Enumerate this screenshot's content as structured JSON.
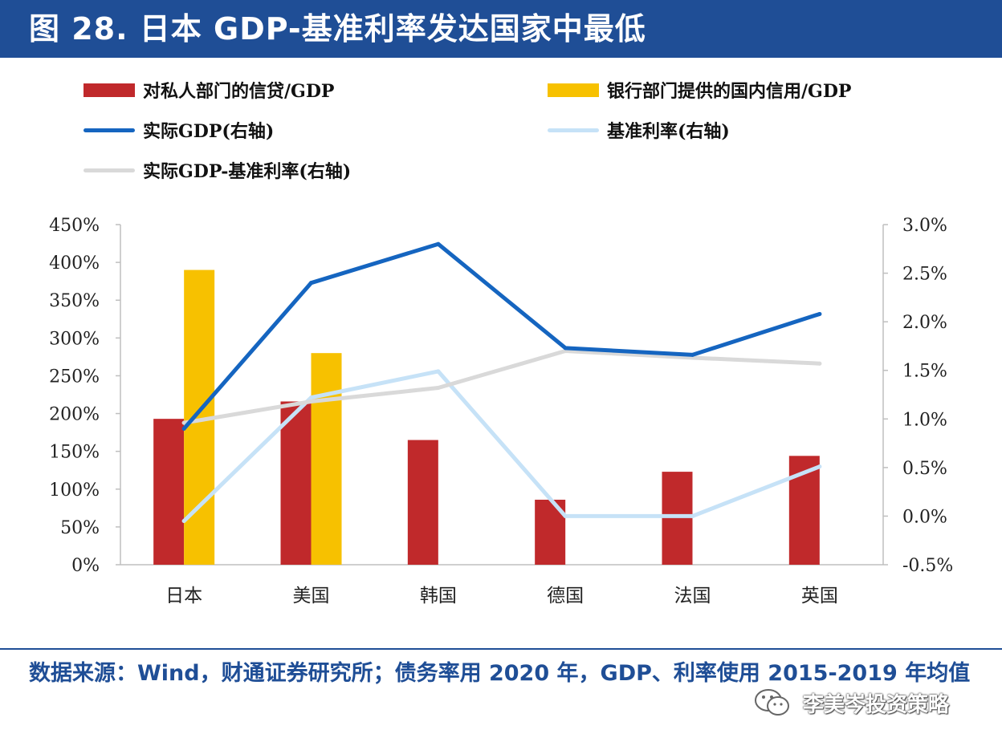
{
  "title": "图 28. 日本 GDP-基准利率发达国家中最低",
  "legend": {
    "private_credit": "对私人部门的信贷/GDP",
    "bank_credit": "银行部门提供的国内信用/GDP",
    "real_gdp": "实际GDP(右轴)",
    "policy_rate": "基准利率(右轴)",
    "gdp_minus_rate": "实际GDP-基准利率(右轴)"
  },
  "colors": {
    "title_bg": "#1f4e96",
    "private_credit": "#c0292b",
    "bank_credit": "#f7c100",
    "real_gdp": "#1565c0",
    "policy_rate": "#c6e2f7",
    "gdp_minus_rate": "#d9d9d9",
    "source_text": "#1f4e96"
  },
  "chart_data": {
    "type": "bar",
    "categories": [
      "日本",
      "美国",
      "韩国",
      "德国",
      "法国",
      "英国"
    ],
    "y_left": {
      "ticks": [
        "450%",
        "400%",
        "350%",
        "300%",
        "250%",
        "200%",
        "150%",
        "100%",
        "50%",
        "0%"
      ],
      "range": [
        0,
        450
      ]
    },
    "y_right": {
      "ticks": [
        "3.0%",
        "2.5%",
        "2.0%",
        "1.5%",
        "1.0%",
        "0.5%",
        "0.0%",
        "-0.5%"
      ],
      "range": [
        -0.5,
        3.0
      ]
    },
    "series": [
      {
        "key": "private_credit",
        "name": "对私人部门的信贷/GDP",
        "type": "bar",
        "axis": "left",
        "values": [
          193,
          216,
          165,
          86,
          123,
          144
        ]
      },
      {
        "key": "bank_credit",
        "name": "银行部门提供的国内信用/GDP",
        "type": "bar",
        "axis": "left",
        "values": [
          390,
          280,
          null,
          null,
          null,
          null
        ]
      },
      {
        "key": "real_gdp",
        "name": "实际GDP(右轴)",
        "type": "line",
        "axis": "right",
        "values": [
          0.9,
          2.4,
          2.8,
          1.73,
          1.66,
          2.08
        ]
      },
      {
        "key": "policy_rate",
        "name": "基准利率(右轴)",
        "type": "line",
        "axis": "right",
        "values": [
          -0.05,
          1.22,
          1.49,
          0.0,
          0.0,
          0.51
        ]
      },
      {
        "key": "gdp_minus_rate",
        "name": "实际GDP-基准利率(右轴)",
        "type": "line",
        "axis": "right",
        "values": [
          0.96,
          1.18,
          1.32,
          1.7,
          1.63,
          1.57
        ]
      }
    ]
  },
  "source": "数据来源：Wind，财通证券研究所；债务率用 2020 年，GDP、利率使用 2015-2019 年均值",
  "watermark": "李美岑投资策略"
}
